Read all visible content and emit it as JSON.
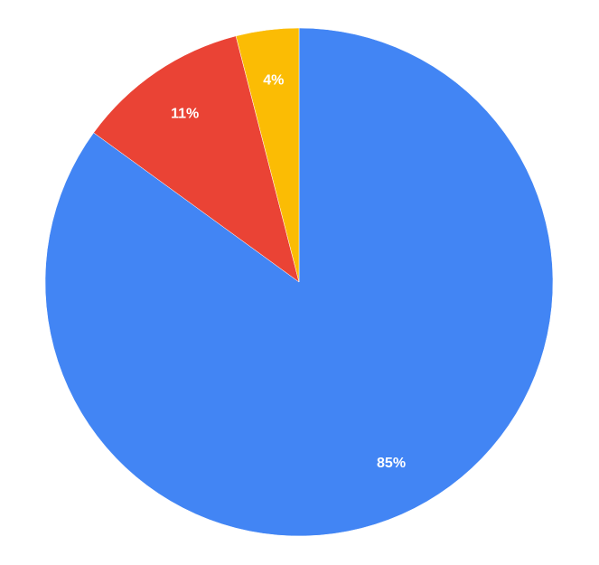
{
  "chart_data": {
    "type": "pie",
    "start_angle_deg": 0,
    "direction": "clockwise",
    "slices": [
      {
        "value": 85,
        "label": "85%",
        "color": "#4285f4"
      },
      {
        "value": 11,
        "label": "11%",
        "color": "#ea4335"
      },
      {
        "value": 4,
        "label": "4%",
        "color": "#fbbc04"
      }
    ],
    "title": "",
    "legend": "none"
  }
}
